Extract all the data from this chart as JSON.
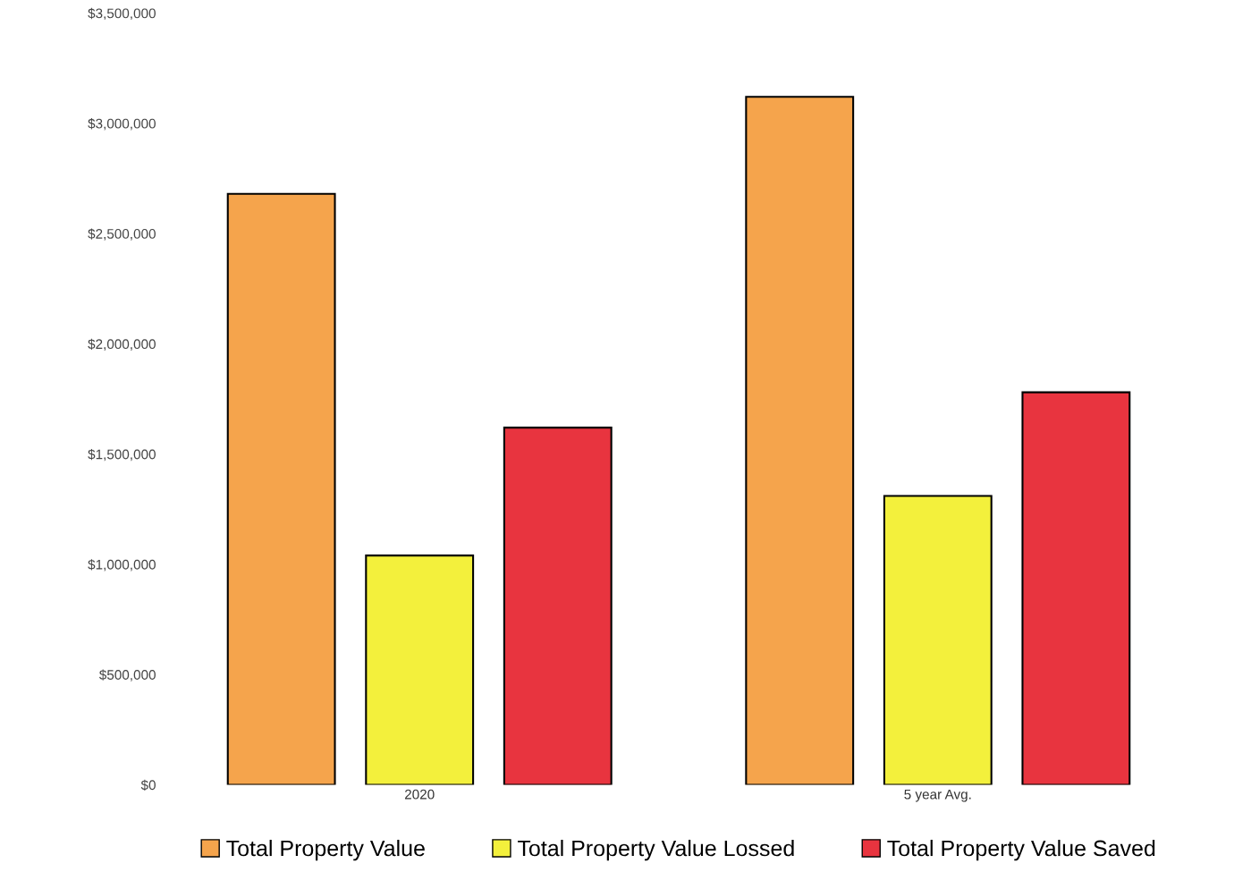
{
  "chart_data": {
    "type": "bar",
    "categories": [
      "2020",
      "5 year Avg."
    ],
    "series": [
      {
        "name": "Total Property Value",
        "color": "#f5a44c",
        "values": [
          2680000,
          3120000
        ]
      },
      {
        "name": "Total Property Value Lossed",
        "color": "#f3f03c",
        "values": [
          1040000,
          1310000
        ]
      },
      {
        "name": "Total Property Value Saved",
        "color": "#e8343f",
        "values": [
          1620000,
          1780000
        ]
      }
    ],
    "ylim": [
      0,
      3500000
    ],
    "yticks": [
      {
        "value": 0,
        "label": "$0"
      },
      {
        "value": 500000,
        "label": "$500,000"
      },
      {
        "value": 1000000,
        "label": "$1,000,000"
      },
      {
        "value": 1500000,
        "label": "$1,500,000"
      },
      {
        "value": 2000000,
        "label": "$2,000,000"
      },
      {
        "value": 2500000,
        "label": "$2,500,000"
      },
      {
        "value": 3000000,
        "label": "$3,000,000"
      },
      {
        "value": 3500000,
        "label": "$3,500,000"
      }
    ],
    "grid": false,
    "legend": "bottom"
  }
}
